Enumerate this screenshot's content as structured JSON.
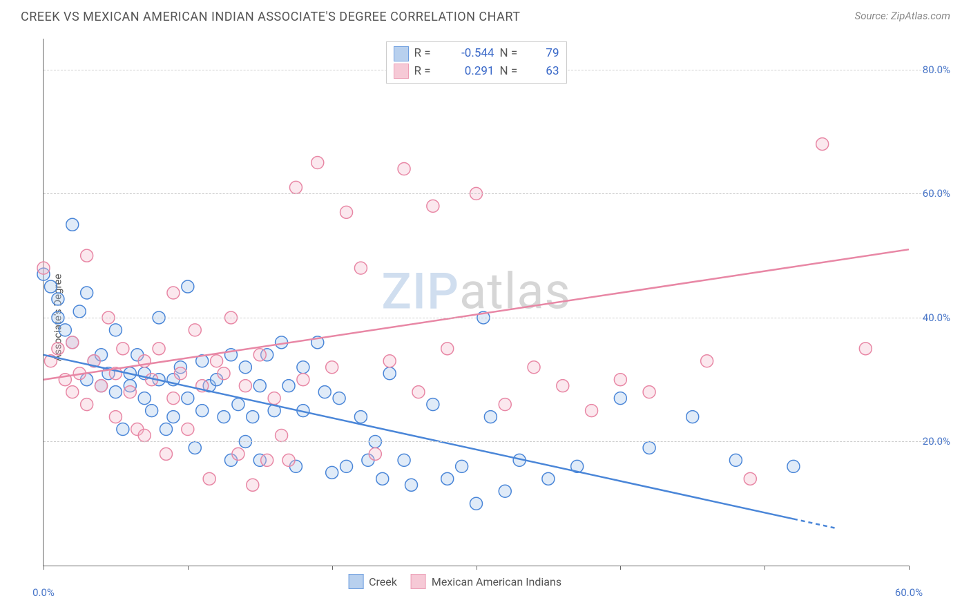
{
  "header": {
    "title": "CREEK VS MEXICAN AMERICAN INDIAN ASSOCIATE'S DEGREE CORRELATION CHART",
    "source": "Source: ZipAtlas.com"
  },
  "chart": {
    "type": "scatter",
    "ylabel": "Associate's Degree",
    "watermark_a": "ZIP",
    "watermark_b": "atlas",
    "xlim": [
      0,
      60
    ],
    "ylim": [
      0,
      85
    ],
    "x_ticks": [
      0,
      10,
      20,
      30,
      40,
      50,
      60
    ],
    "x_tick_labels": {
      "0": "0.0%",
      "60": "60.0%"
    },
    "y_gridlines": [
      20,
      40,
      60,
      80
    ],
    "y_tick_labels": {
      "20": "20.0%",
      "40": "40.0%",
      "60": "60.0%",
      "80": "80.0%"
    },
    "background_color": "#ffffff",
    "grid_color": "#cccccc",
    "axis_color": "#666666",
    "marker_radius": 9,
    "marker_stroke_width": 1.5,
    "marker_fill_opacity": 0.35,
    "series": [
      {
        "name": "Creek",
        "color_stroke": "#4a86d8",
        "color_fill": "#a7c5ea",
        "R_label": "R =",
        "R": "-0.544",
        "N_label": "N =",
        "N": "79",
        "trend": {
          "x1": 0,
          "y1": 34,
          "x2": 55,
          "y2": 6,
          "dash_from_x": 52
        },
        "points": [
          [
            0,
            47
          ],
          [
            0.5,
            45
          ],
          [
            1,
            43
          ],
          [
            1,
            40
          ],
          [
            1.5,
            38
          ],
          [
            2,
            55
          ],
          [
            2,
            36
          ],
          [
            2.5,
            41
          ],
          [
            3,
            44
          ],
          [
            3,
            30
          ],
          [
            3.5,
            33
          ],
          [
            4,
            29
          ],
          [
            4,
            34
          ],
          [
            4.5,
            31
          ],
          [
            5,
            28
          ],
          [
            5,
            38
          ],
          [
            5.5,
            22
          ],
          [
            6,
            31
          ],
          [
            6,
            29
          ],
          [
            6.5,
            34
          ],
          [
            7,
            27
          ],
          [
            7,
            31
          ],
          [
            7.5,
            25
          ],
          [
            8,
            30
          ],
          [
            8,
            40
          ],
          [
            8.5,
            22
          ],
          [
            9,
            30
          ],
          [
            9,
            24
          ],
          [
            9.5,
            32
          ],
          [
            10,
            45
          ],
          [
            10,
            27
          ],
          [
            10.5,
            19
          ],
          [
            11,
            33
          ],
          [
            11,
            25
          ],
          [
            11.5,
            29
          ],
          [
            12,
            30
          ],
          [
            12.5,
            24
          ],
          [
            13,
            34
          ],
          [
            13,
            17
          ],
          [
            13.5,
            26
          ],
          [
            14,
            20
          ],
          [
            14,
            32
          ],
          [
            14.5,
            24
          ],
          [
            15,
            29
          ],
          [
            15,
            17
          ],
          [
            15.5,
            34
          ],
          [
            16,
            25
          ],
          [
            16.5,
            36
          ],
          [
            17,
            29
          ],
          [
            17.5,
            16
          ],
          [
            18,
            32
          ],
          [
            18,
            25
          ],
          [
            19,
            36
          ],
          [
            19.5,
            28
          ],
          [
            20,
            15
          ],
          [
            20.5,
            27
          ],
          [
            21,
            16
          ],
          [
            22,
            24
          ],
          [
            22.5,
            17
          ],
          [
            23,
            20
          ],
          [
            23.5,
            14
          ],
          [
            24,
            31
          ],
          [
            25,
            17
          ],
          [
            25.5,
            13
          ],
          [
            27,
            26
          ],
          [
            28,
            14
          ],
          [
            29,
            16
          ],
          [
            30,
            10
          ],
          [
            30.5,
            40
          ],
          [
            31,
            24
          ],
          [
            32,
            12
          ],
          [
            33,
            17
          ],
          [
            35,
            14
          ],
          [
            37,
            16
          ],
          [
            40,
            27
          ],
          [
            42,
            19
          ],
          [
            45,
            24
          ],
          [
            48,
            17
          ],
          [
            52,
            16
          ]
        ]
      },
      {
        "name": "Mexican American Indians",
        "color_stroke": "#e887a5",
        "color_fill": "#f4bccd",
        "R_label": "R =",
        "R": "0.291",
        "N_label": "N =",
        "N": "63",
        "trend": {
          "x1": 0,
          "y1": 30,
          "x2": 60,
          "y2": 51
        },
        "points": [
          [
            0,
            48
          ],
          [
            0.5,
            33
          ],
          [
            1,
            35
          ],
          [
            1.5,
            30
          ],
          [
            2,
            28
          ],
          [
            2,
            36
          ],
          [
            2.5,
            31
          ],
          [
            3,
            50
          ],
          [
            3,
            26
          ],
          [
            3.5,
            33
          ],
          [
            4,
            29
          ],
          [
            4.5,
            40
          ],
          [
            5,
            24
          ],
          [
            5,
            31
          ],
          [
            5.5,
            35
          ],
          [
            6,
            28
          ],
          [
            6.5,
            22
          ],
          [
            7,
            33
          ],
          [
            7,
            21
          ],
          [
            7.5,
            30
          ],
          [
            8,
            35
          ],
          [
            8.5,
            18
          ],
          [
            9,
            44
          ],
          [
            9,
            27
          ],
          [
            9.5,
            31
          ],
          [
            10,
            22
          ],
          [
            10.5,
            38
          ],
          [
            11,
            29
          ],
          [
            11.5,
            14
          ],
          [
            12,
            33
          ],
          [
            12.5,
            31
          ],
          [
            13,
            40
          ],
          [
            13.5,
            18
          ],
          [
            14,
            29
          ],
          [
            14.5,
            13
          ],
          [
            15,
            34
          ],
          [
            15.5,
            17
          ],
          [
            16,
            27
          ],
          [
            16.5,
            21
          ],
          [
            17,
            17
          ],
          [
            17.5,
            61
          ],
          [
            18,
            30
          ],
          [
            19,
            65
          ],
          [
            20,
            32
          ],
          [
            21,
            57
          ],
          [
            22,
            48
          ],
          [
            23,
            18
          ],
          [
            24,
            33
          ],
          [
            25,
            64
          ],
          [
            26,
            28
          ],
          [
            27,
            58
          ],
          [
            28,
            35
          ],
          [
            30,
            60
          ],
          [
            32,
            26
          ],
          [
            34,
            32
          ],
          [
            36,
            29
          ],
          [
            38,
            25
          ],
          [
            40,
            30
          ],
          [
            42,
            28
          ],
          [
            46,
            33
          ],
          [
            49,
            14
          ],
          [
            54,
            68
          ],
          [
            57,
            35
          ]
        ]
      }
    ],
    "legend_bottom": [
      {
        "label": "Creek",
        "series": 0
      },
      {
        "label": "Mexican American Indians",
        "series": 1
      }
    ]
  }
}
